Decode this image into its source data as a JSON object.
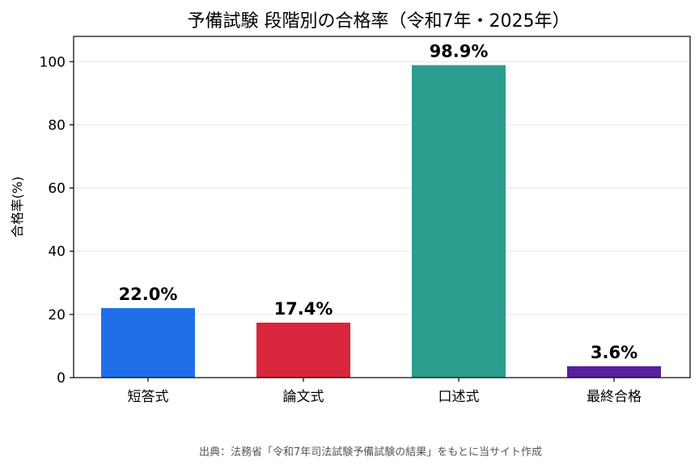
{
  "chart_data": {
    "type": "bar",
    "title": "予備試験 段階別の合格率（令和7年・2025年）",
    "ylabel": "合格率(%)",
    "xlabel": "",
    "categories": [
      "短答式",
      "論文式",
      "口述式",
      "最終合格"
    ],
    "values": [
      22.0,
      17.4,
      98.9,
      3.6
    ],
    "value_labels": [
      "22.0%",
      "17.4%",
      "98.9%",
      "3.6%"
    ],
    "colors": [
      "#1f6fe8",
      "#d9263c",
      "#2a9d8f",
      "#5a1ea0"
    ],
    "ylim": [
      0,
      108
    ],
    "yticks": [
      0,
      20,
      40,
      60,
      80,
      100
    ],
    "grid": "y",
    "legend": "none"
  },
  "source": "出典：法務省「令和7年司法試験予備試験の結果」をもとに当サイト作成"
}
